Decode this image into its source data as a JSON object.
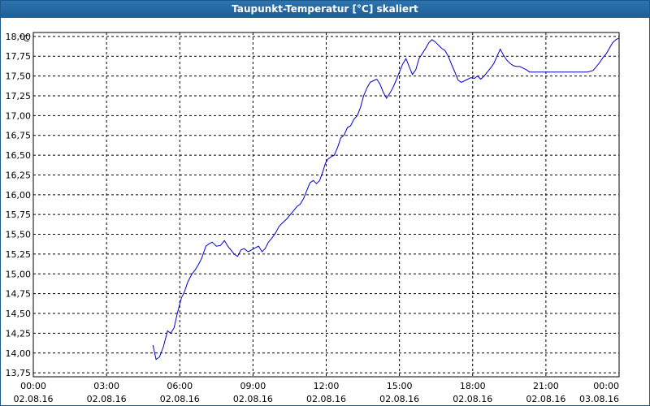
{
  "window": {
    "title": "Taupunkt-Temperatur [°C] skaliert"
  },
  "chart_data": {
    "type": "line",
    "title": "Taupunkt-Temperatur [°C] skaliert",
    "ylabel": "°C",
    "xlabel": "",
    "ylim": [
      13.7,
      18.05
    ],
    "xlim": [
      0,
      24
    ],
    "grid": true,
    "yticks": [
      "13,75",
      "14,00",
      "14,25",
      "14,50",
      "14,75",
      "15,00",
      "15,25",
      "15,50",
      "15,75",
      "16,00",
      "16,25",
      "16,50",
      "16,75",
      "17,00",
      "17,25",
      "17,50",
      "17,75",
      "18,00"
    ],
    "xticks": [
      {
        "time": "00:00",
        "date": "02.08.16"
      },
      {
        "time": "03:00",
        "date": "02.08.16"
      },
      {
        "time": "06:00",
        "date": "02.08.16"
      },
      {
        "time": "09:00",
        "date": "02.08.16"
      },
      {
        "time": "12:00",
        "date": "02.08.16"
      },
      {
        "time": "15:00",
        "date": "02.08.16"
      },
      {
        "time": "18:00",
        "date": "02.08.16"
      },
      {
        "time": "21:00",
        "date": "02.08.16"
      },
      {
        "time": "00:00",
        "date": "03.08.16"
      }
    ],
    "series": [
      {
        "color": "#0000cc",
        "x": [
          4.9,
          5.03,
          5.17,
          5.33,
          5.5,
          5.63,
          5.77,
          5.9,
          6.0,
          6.07,
          6.2,
          6.33,
          6.5,
          6.63,
          6.77,
          6.9,
          7.07,
          7.2,
          7.33,
          7.5,
          7.67,
          7.83,
          7.97,
          8.1,
          8.23,
          8.37,
          8.5,
          8.63,
          8.8,
          8.93,
          9.1,
          9.23,
          9.37,
          9.5,
          9.63,
          9.77,
          9.93,
          10.07,
          10.23,
          10.4,
          10.53,
          10.67,
          10.8,
          10.93,
          11.07,
          11.2,
          11.33,
          11.47,
          11.6,
          11.73,
          11.87,
          11.97,
          12.07,
          12.2,
          12.33,
          12.47,
          12.6,
          12.73,
          12.87,
          13.0,
          13.13,
          13.27,
          13.4,
          13.53,
          13.67,
          13.8,
          13.93,
          14.07,
          14.2,
          14.33,
          14.47,
          14.6,
          14.73,
          14.87,
          15.0,
          15.13,
          15.27,
          15.4,
          15.53,
          15.67,
          15.8,
          15.93,
          16.07,
          16.2,
          16.33,
          16.47,
          16.6,
          16.73,
          16.87,
          17.0,
          17.13,
          17.27,
          17.4,
          17.53,
          17.67,
          17.8,
          17.93,
          18.07,
          18.2,
          18.33,
          18.47,
          18.6,
          18.73,
          18.87,
          19.0,
          19.13,
          19.27,
          19.4,
          19.53,
          19.67,
          19.8,
          19.93,
          20.07,
          20.2,
          20.33,
          20.47,
          20.6,
          20.73,
          20.87,
          21.0,
          21.2,
          21.5,
          21.8,
          22.1,
          22.4,
          22.7,
          22.93,
          23.07,
          23.2,
          23.33,
          23.47,
          23.6,
          23.73,
          23.87,
          24.0
        ],
        "y": [
          14.1,
          13.92,
          13.95,
          14.08,
          14.28,
          14.25,
          14.32,
          14.5,
          14.62,
          14.7,
          14.78,
          14.9,
          15.0,
          15.05,
          15.12,
          15.2,
          15.35,
          15.38,
          15.4,
          15.35,
          15.36,
          15.42,
          15.35,
          15.3,
          15.25,
          15.22,
          15.3,
          15.32,
          15.28,
          15.3,
          15.33,
          15.35,
          15.28,
          15.32,
          15.4,
          15.45,
          15.52,
          15.6,
          15.65,
          15.7,
          15.75,
          15.8,
          15.85,
          15.88,
          15.95,
          16.05,
          16.15,
          16.18,
          16.14,
          16.18,
          16.3,
          16.4,
          16.45,
          16.48,
          16.5,
          16.6,
          16.72,
          16.75,
          16.85,
          16.87,
          16.95,
          17.0,
          17.1,
          17.25,
          17.35,
          17.42,
          17.44,
          17.46,
          17.4,
          17.3,
          17.22,
          17.28,
          17.35,
          17.45,
          17.55,
          17.65,
          17.72,
          17.62,
          17.52,
          17.58,
          17.72,
          17.78,
          17.85,
          17.92,
          17.96,
          17.93,
          17.89,
          17.85,
          17.82,
          17.75,
          17.65,
          17.55,
          17.45,
          17.42,
          17.44,
          17.46,
          17.48,
          17.47,
          17.5,
          17.46,
          17.5,
          17.55,
          17.6,
          17.66,
          17.75,
          17.84,
          17.76,
          17.7,
          17.66,
          17.63,
          17.62,
          17.62,
          17.6,
          17.58,
          17.55,
          17.55,
          17.55,
          17.55,
          17.55,
          17.55,
          17.55,
          17.55,
          17.55,
          17.55,
          17.55,
          17.55,
          17.57,
          17.62,
          17.67,
          17.73,
          17.78,
          17.85,
          17.92,
          17.96,
          17.98
        ]
      }
    ]
  }
}
